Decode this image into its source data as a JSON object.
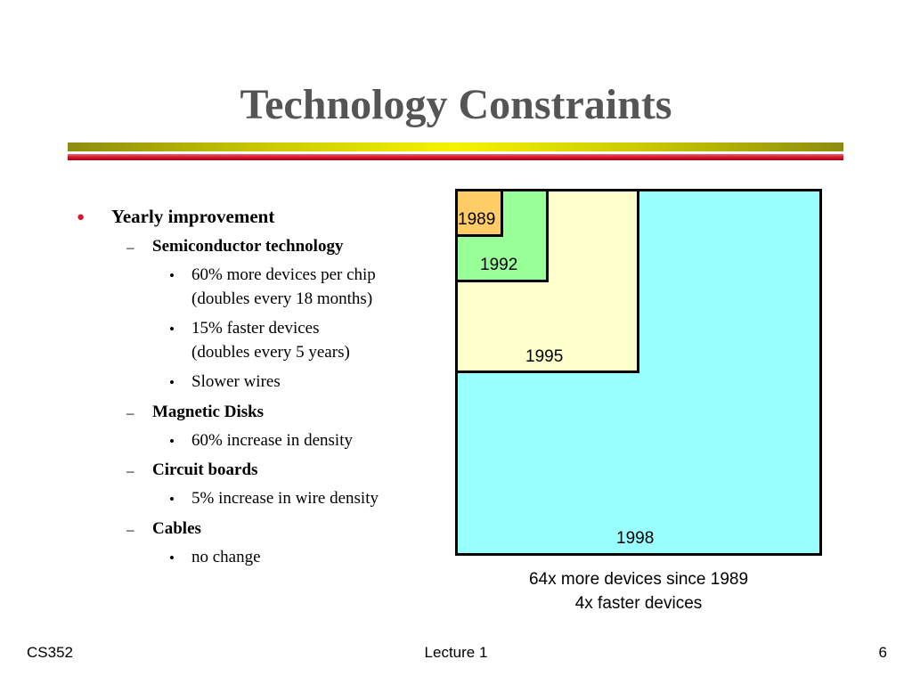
{
  "slide": {
    "title": "Technology Constraints"
  },
  "bullets": {
    "yearly": "Yearly improvement",
    "semi": "Semiconductor technology",
    "semi_1a": "60% more devices per chip",
    "semi_1b": "(doubles every 18 months)",
    "semi_2a": "15% faster devices",
    "semi_2b": "(doubles every 5 years)",
    "semi_3": "Slower wires",
    "disks": "Magnetic Disks",
    "disks_1": "60% increase in density",
    "boards": "Circuit boards",
    "boards_1": "5% increase in wire density",
    "cables": "Cables",
    "cables_1": "no change"
  },
  "markers": {
    "dot": "●",
    "dash": "–",
    "bullet": "•"
  },
  "diagram": {
    "boxes": [
      {
        "label": "1998",
        "color": "#99ffff"
      },
      {
        "label": "1995",
        "color": "#ffffcc"
      },
      {
        "label": "1992",
        "color": "#99ff99"
      },
      {
        "label": "1989",
        "color": "#ffcc66"
      }
    ],
    "caption_line1": "64x more devices since 1989",
    "caption_line2": "4x faster devices"
  },
  "footer": {
    "left": "CS352",
    "center": "Lecture 1",
    "right": "6"
  },
  "colors": {
    "title": "#555555",
    "accent_red": "#d4182c",
    "accent_gold": "#f4f400"
  }
}
